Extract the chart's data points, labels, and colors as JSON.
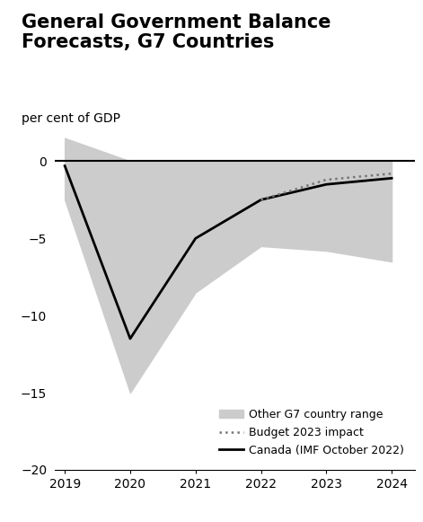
{
  "title": "General Government Balance\nForecasts, G7 Countries",
  "ylabel": "per cent of GDP",
  "years": [
    2019,
    2020,
    2021,
    2022,
    2023,
    2024
  ],
  "canada_imf": [
    -0.3,
    -11.5,
    -5.0,
    -2.5,
    -1.5,
    -1.1
  ],
  "budget_2023_years": [
    2022,
    2023,
    2024
  ],
  "budget_2023": [
    -2.5,
    -1.2,
    -0.8
  ],
  "g7_upper": [
    1.5,
    0.0,
    0.0,
    0.0,
    0.0,
    0.0
  ],
  "g7_lower": [
    -2.5,
    -15.0,
    -8.5,
    -5.5,
    -5.8,
    -6.5
  ],
  "ylim": [
    -20,
    2.5
  ],
  "yticks": [
    0,
    -5,
    -10,
    -15,
    -20
  ],
  "xticks": [
    2019,
    2020,
    2021,
    2022,
    2023,
    2024
  ],
  "g7_color": "#cccccc",
  "canada_color": "#000000",
  "budget_color": "#777777",
  "background_color": "#ffffff",
  "title_fontsize": 15,
  "label_fontsize": 10,
  "tick_fontsize": 10
}
